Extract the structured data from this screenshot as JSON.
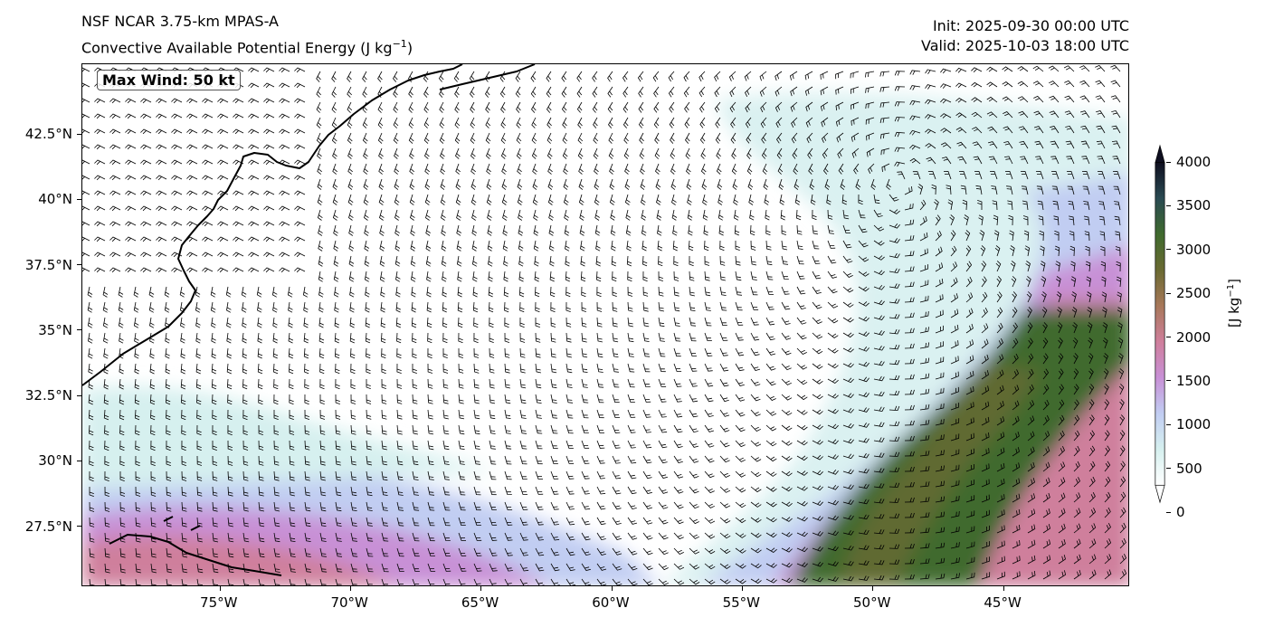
{
  "header": {
    "model_title": "NSF NCAR 3.75-km MPAS-A",
    "field_title": "Convective Available Potential Energy (J kg",
    "field_title_sup": "−1",
    "field_title_end": ")",
    "init": "Init: 2025-09-30 00:00 UTC",
    "valid": "Valid: 2025-10-03 18:00 UTC"
  },
  "annotation": {
    "max_wind": "Max Wind: 50 kt"
  },
  "map": {
    "lon_range": [
      -80.3,
      -40.2
    ],
    "lat_range": [
      25.2,
      45.2
    ],
    "lon_ticks": [
      {
        "value": -75,
        "label": "75°W"
      },
      {
        "value": -70,
        "label": "70°W"
      },
      {
        "value": -65,
        "label": "65°W"
      },
      {
        "value": -60,
        "label": "60°W"
      },
      {
        "value": -55,
        "label": "55°W"
      },
      {
        "value": -50,
        "label": "50°W"
      },
      {
        "value": -45,
        "label": "45°W"
      }
    ],
    "lat_ticks": [
      {
        "value": 42.5,
        "label": "42.5°N"
      },
      {
        "value": 40,
        "label": "40°N"
      },
      {
        "value": 37.5,
        "label": "37.5°N"
      },
      {
        "value": 35,
        "label": "35°N"
      },
      {
        "value": 32.5,
        "label": "32.5°N"
      },
      {
        "value": 30,
        "label": "30°N"
      },
      {
        "value": 27.5,
        "label": "27.5°N"
      }
    ],
    "cyclone_center": {
      "lon": -49.0,
      "lat": 40.8
    },
    "coastline_color": "#000000"
  },
  "colorbar": {
    "min": 0,
    "max": 4300,
    "ticks": [
      {
        "value": 0,
        "label": "0"
      },
      {
        "value": 500,
        "label": "500"
      },
      {
        "value": 1000,
        "label": "1000"
      },
      {
        "value": 1500,
        "label": "1500"
      },
      {
        "value": 2000,
        "label": "2000"
      },
      {
        "value": 2500,
        "label": "2500"
      },
      {
        "value": 3000,
        "label": "3000"
      },
      {
        "value": 3500,
        "label": "3500"
      },
      {
        "value": 4000,
        "label": "4000"
      }
    ],
    "units_label": "[J kg",
    "units_sup": "−1",
    "units_end": "]",
    "colors": [
      "#ffffff",
      "#d6f0ef",
      "#c1cdf2",
      "#c890d6",
      "#cf7f9c",
      "#a8785a",
      "#6a6a32",
      "#3f6a2e",
      "#2a4a52",
      "#0f0f20"
    ]
  }
}
